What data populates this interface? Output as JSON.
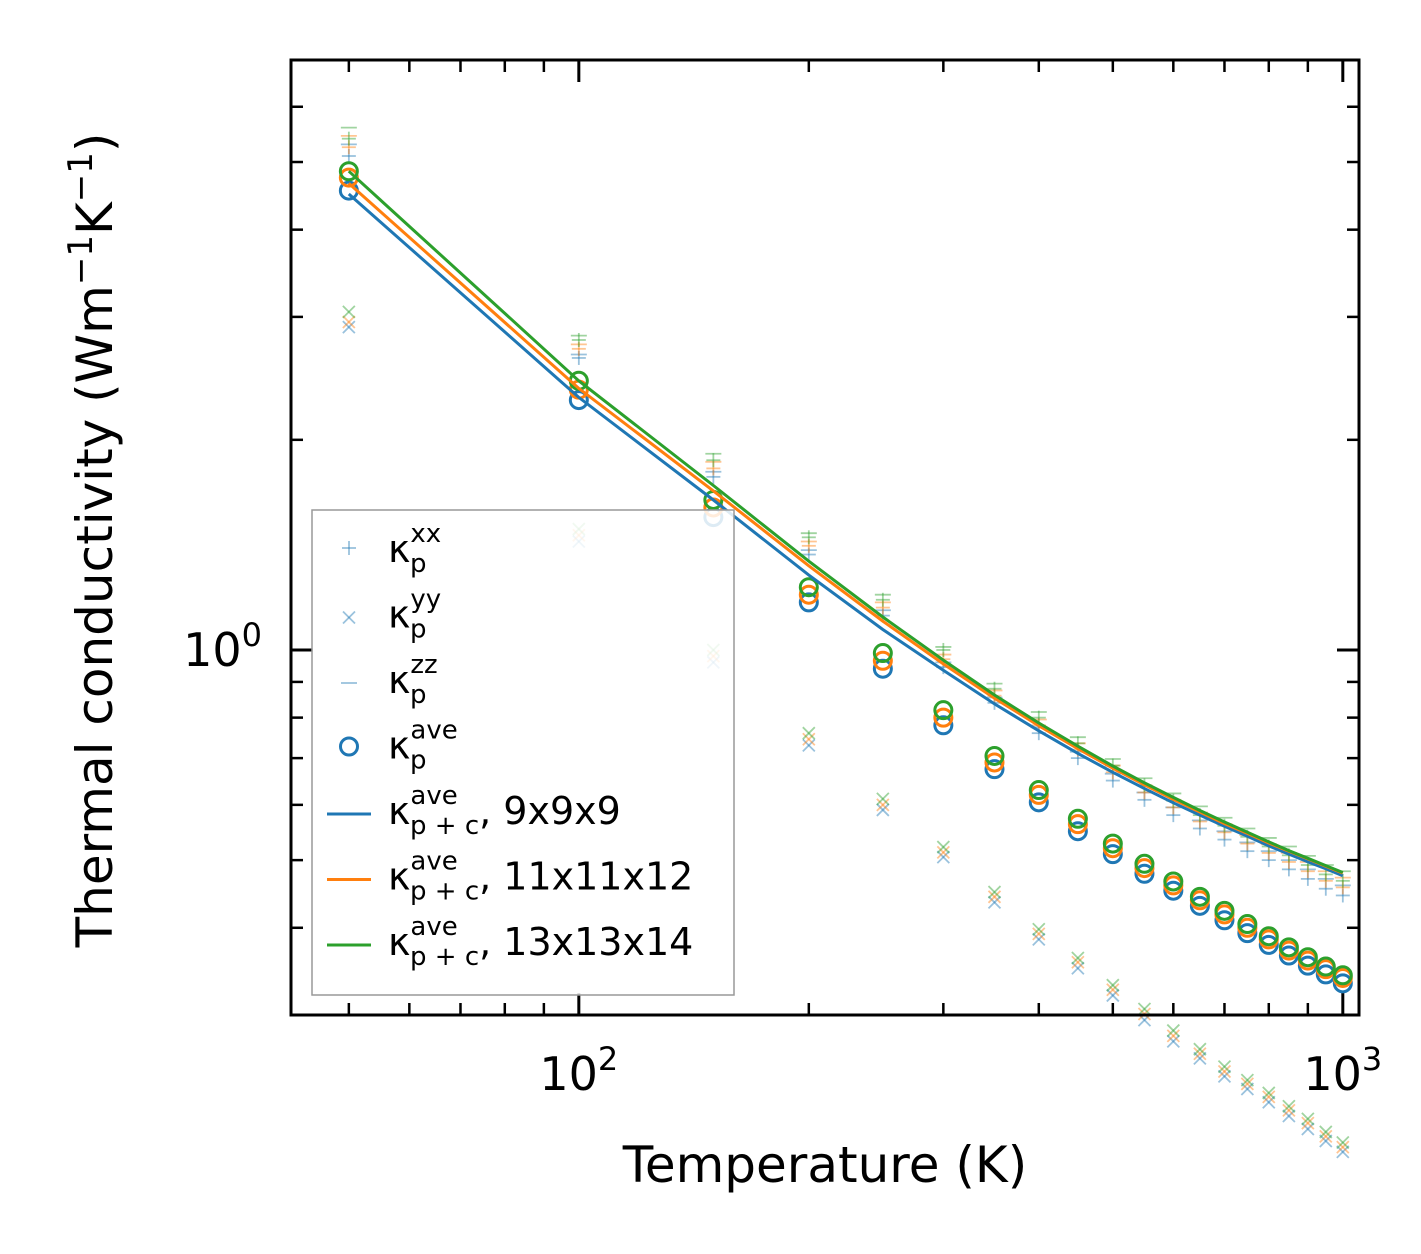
{
  "colors": {
    "s1": "#1f77b4",
    "s2": "#ff7f0e",
    "s3": "#2ca02c",
    "axis": "#000000",
    "legend_frame": "#999999"
  },
  "chart_data": {
    "type": "scatter+line",
    "x_scale": "log",
    "y_scale": "log",
    "xlim": [
      42,
      1050
    ],
    "ylim": [
      0.3,
      7.0
    ],
    "title": "",
    "xlabel": "Temperature (K)",
    "ylabel_main": "Thermal conductivity (Wm",
    "ylabel_sup1": "−1",
    "ylabel_mid": "K",
    "ylabel_sup2": "−1",
    "ylabel_end": ")",
    "x_major_ticks": [
      {
        "value": 100,
        "base": "10",
        "exp": "2"
      },
      {
        "value": 1000,
        "base": "10",
        "exp": "3"
      }
    ],
    "y_major_ticks": [
      {
        "value": 1,
        "base": "10",
        "exp": "0"
      }
    ],
    "x": [
      50,
      100,
      150,
      200,
      250,
      300,
      350,
      400,
      450,
      500,
      550,
      600,
      650,
      700,
      750,
      800,
      850,
      900,
      950,
      1000
    ],
    "series": [
      {
        "name": "9x9x9",
        "color": "#1f77b4",
        "kappa_xx": [
          5.1,
          2.62,
          1.77,
          1.37,
          1.12,
          0.945,
          0.84,
          0.76,
          0.7,
          0.65,
          0.61,
          0.58,
          0.555,
          0.535,
          0.515,
          0.5,
          0.485,
          0.47,
          0.455,
          0.445
        ],
        "kappa_yy": [
          2.9,
          1.43,
          0.96,
          0.73,
          0.59,
          0.505,
          0.435,
          0.385,
          0.35,
          0.32,
          0.295,
          0.275,
          0.26,
          0.245,
          0.235,
          0.225,
          0.215,
          0.206,
          0.198,
          0.191
        ],
        "kappa_zz": [
          5.3,
          2.65,
          1.8,
          1.39,
          1.14,
          0.96,
          0.855,
          0.775,
          0.715,
          0.665,
          0.625,
          0.595,
          0.57,
          0.55,
          0.53,
          0.515,
          0.5,
          0.485,
          0.47,
          0.46
        ],
        "kappa_ave": [
          4.55,
          2.28,
          1.55,
          1.17,
          0.94,
          0.78,
          0.675,
          0.605,
          0.55,
          0.51,
          0.478,
          0.452,
          0.43,
          0.41,
          0.393,
          0.378,
          0.365,
          0.353,
          0.343,
          0.333
        ],
        "kappa_pc": [
          4.5,
          2.3,
          1.64,
          1.28,
          1.07,
          0.935,
          0.837,
          0.766,
          0.711,
          0.668,
          0.633,
          0.604,
          0.58,
          0.559,
          0.541,
          0.524,
          0.51,
          0.497,
          0.486,
          0.475
        ]
      },
      {
        "name": "11x11x12",
        "color": "#ff7f0e",
        "kappa_xx": [
          5.25,
          2.7,
          1.82,
          1.41,
          1.15,
          0.97,
          0.86,
          0.78,
          0.72,
          0.668,
          0.625,
          0.595,
          0.568,
          0.548,
          0.528,
          0.512,
          0.497,
          0.482,
          0.467,
          0.457
        ],
        "kappa_yy": [
          2.95,
          1.46,
          0.98,
          0.745,
          0.6,
          0.513,
          0.443,
          0.392,
          0.357,
          0.326,
          0.301,
          0.28,
          0.264,
          0.249,
          0.239,
          0.229,
          0.219,
          0.21,
          0.201,
          0.194
        ],
        "kappa_zz": [
          5.45,
          2.74,
          1.86,
          1.43,
          1.17,
          0.985,
          0.875,
          0.795,
          0.735,
          0.683,
          0.64,
          0.61,
          0.585,
          0.563,
          0.543,
          0.527,
          0.512,
          0.497,
          0.482,
          0.472
        ],
        "kappa_ave": [
          4.75,
          2.36,
          1.6,
          1.2,
          0.965,
          0.8,
          0.69,
          0.62,
          0.563,
          0.52,
          0.487,
          0.46,
          0.438,
          0.418,
          0.4,
          0.385,
          0.371,
          0.359,
          0.349,
          0.339
        ],
        "kappa_pc": [
          4.66,
          2.37,
          1.69,
          1.32,
          1.1,
          0.955,
          0.853,
          0.779,
          0.722,
          0.677,
          0.641,
          0.611,
          0.586,
          0.564,
          0.546,
          0.529,
          0.515,
          0.502,
          0.49,
          0.479
        ]
      },
      {
        "name": "13x13x14",
        "color": "#2ca02c",
        "kappa_xx": [
          5.4,
          2.78,
          1.87,
          1.45,
          1.18,
          1.0,
          0.88,
          0.8,
          0.735,
          0.683,
          0.64,
          0.608,
          0.58,
          0.56,
          0.54,
          0.523,
          0.508,
          0.492,
          0.477,
          0.467
        ],
        "kappa_yy": [
          3.05,
          1.49,
          1.0,
          0.76,
          0.612,
          0.522,
          0.45,
          0.398,
          0.362,
          0.331,
          0.306,
          0.285,
          0.268,
          0.253,
          0.242,
          0.232,
          0.222,
          0.213,
          0.204,
          0.197
        ],
        "kappa_zz": [
          5.6,
          2.82,
          1.91,
          1.47,
          1.2,
          1.01,
          0.895,
          0.815,
          0.75,
          0.698,
          0.655,
          0.623,
          0.597,
          0.575,
          0.555,
          0.538,
          0.523,
          0.507,
          0.492,
          0.482
        ],
        "kappa_ave": [
          4.85,
          2.43,
          1.64,
          1.23,
          0.99,
          0.82,
          0.705,
          0.63,
          0.573,
          0.528,
          0.494,
          0.466,
          0.443,
          0.423,
          0.405,
          0.389,
          0.375,
          0.363,
          0.352,
          0.342
        ],
        "kappa_pc": [
          4.85,
          2.43,
          1.72,
          1.34,
          1.115,
          0.967,
          0.862,
          0.786,
          0.728,
          0.682,
          0.645,
          0.615,
          0.589,
          0.567,
          0.548,
          0.531,
          0.516,
          0.503,
          0.491,
          0.48
        ]
      }
    ],
    "legend": {
      "placement": "lower-left",
      "entries": [
        {
          "symbol": "+",
          "kind": "marker_plus",
          "base": "κ",
          "sub": "p",
          "sup": "xx",
          "suffix": ""
        },
        {
          "symbol": "×",
          "kind": "marker_x",
          "base": "κ",
          "sub": "p",
          "sup": "yy",
          "suffix": ""
        },
        {
          "symbol": "_",
          "kind": "marker_dash",
          "base": "κ",
          "sub": "p",
          "sup": "zz",
          "suffix": ""
        },
        {
          "symbol": "o",
          "kind": "marker_circle",
          "base": "κ",
          "sub": "p",
          "sup": "ave",
          "suffix": ""
        },
        {
          "symbol": "line",
          "kind": "line_s1",
          "base": "κ",
          "sub": "p + c",
          "sup": "ave",
          "suffix": ", 9x9x9"
        },
        {
          "symbol": "line",
          "kind": "line_s2",
          "base": "κ",
          "sub": "p + c",
          "sup": "ave",
          "suffix": ", 11x11x12"
        },
        {
          "symbol": "line",
          "kind": "line_s3",
          "base": "κ",
          "sub": "p + c",
          "sup": "ave",
          "suffix": ", 13x13x14"
        }
      ]
    }
  }
}
